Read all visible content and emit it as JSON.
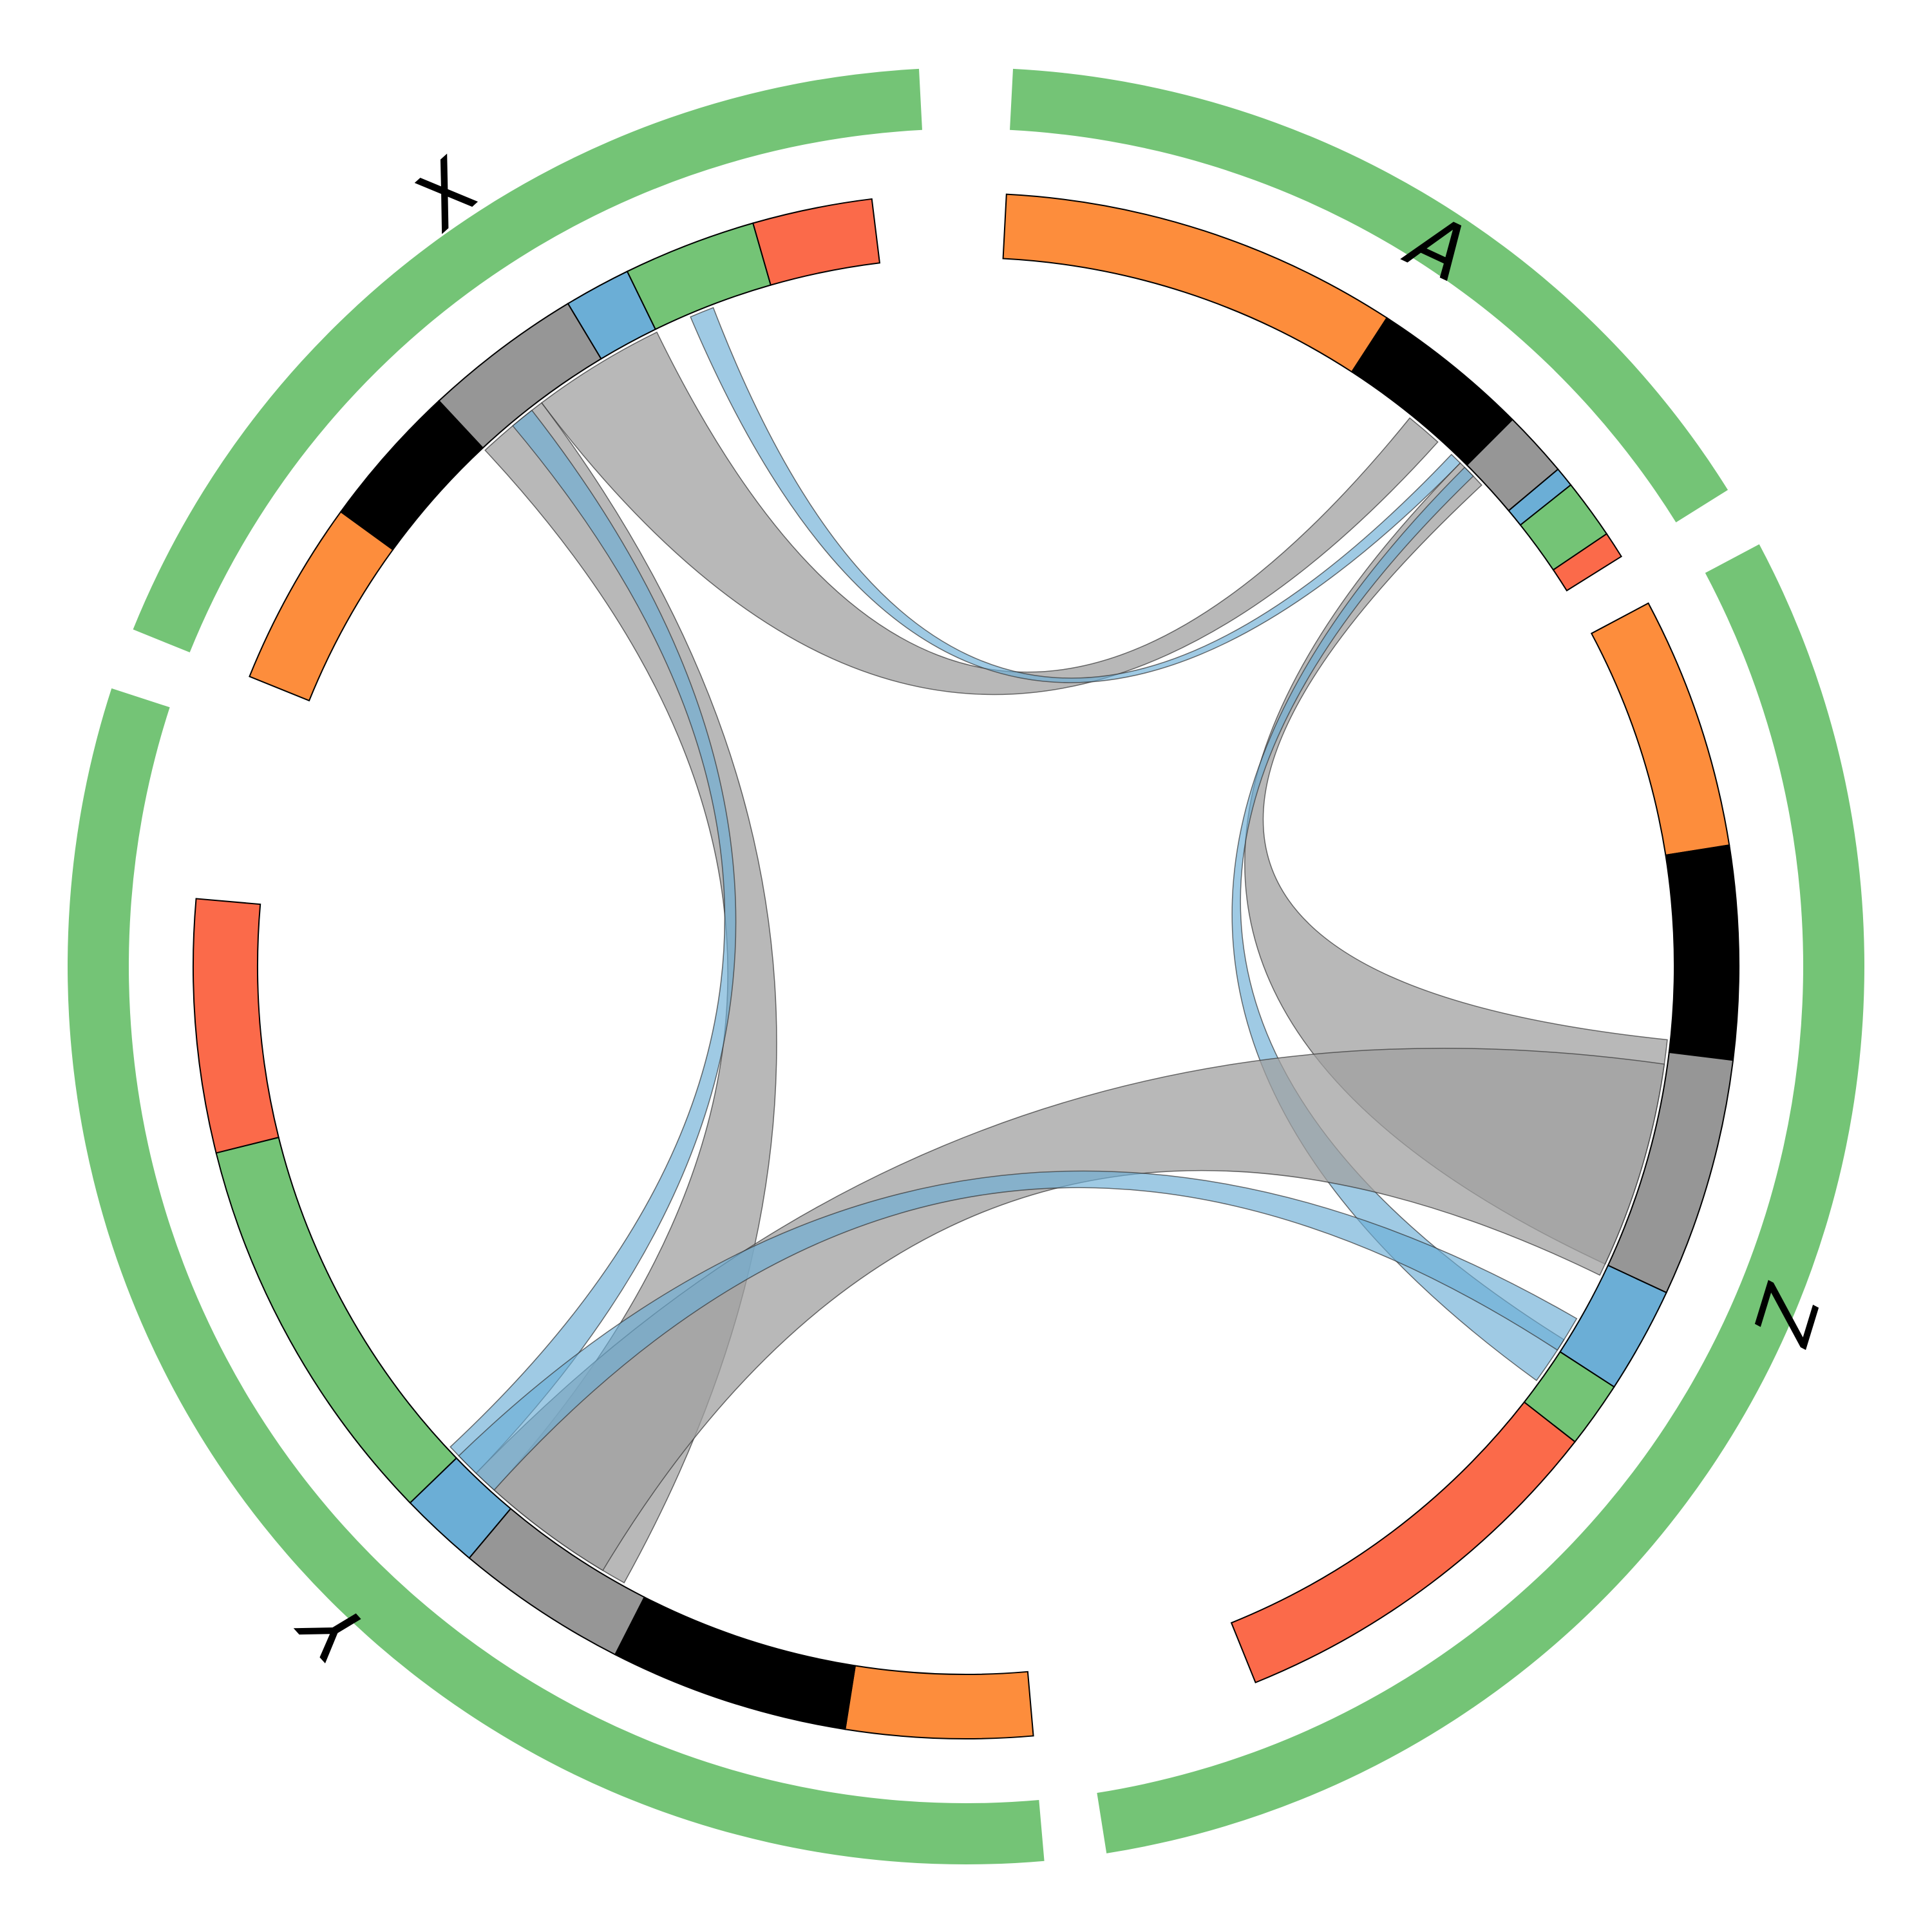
{
  "colors": {
    "outer_ring": "#74c476",
    "red": "#fb6a4a",
    "green": "#74c476",
    "blue": "#6baed6",
    "gray": "#969696",
    "black": "#000000",
    "orange": "#fd8d3c",
    "link_gray": "#a0a0a0",
    "link_blue": "#6baed6"
  },
  "sectors": [
    {
      "id": "A",
      "label": "A",
      "start": 3,
      "end": 58,
      "segments": [
        {
          "color": "orange",
          "from": 0,
          "to": 30
        },
        {
          "color": "black",
          "from": 30,
          "to": 42
        },
        {
          "color": "gray",
          "from": 42,
          "to": 47
        },
        {
          "color": "blue",
          "from": 47,
          "to": 48.5
        },
        {
          "color": "green",
          "from": 48.5,
          "to": 53
        },
        {
          "color": "red",
          "from": 53,
          "to": 55
        }
      ]
    },
    {
      "id": "Z",
      "label": "Z",
      "start": 62,
      "end": 171,
      "segments": [
        {
          "color": "orange",
          "from": 0,
          "to": 19
        },
        {
          "color": "black",
          "from": 19,
          "to": 35
        },
        {
          "color": "gray",
          "from": 35,
          "to": 53
        },
        {
          "color": "blue",
          "from": 53,
          "to": 61
        },
        {
          "color": "green",
          "from": 61,
          "to": 66
        },
        {
          "color": "red",
          "from": 66,
          "to": 96
        }
      ]
    },
    {
      "id": "Y",
      "label": "Y",
      "start": 175,
      "end": 288,
      "segments": [
        {
          "color": "orange",
          "from": 0,
          "to": 14
        },
        {
          "color": "black",
          "from": 14,
          "to": 32
        },
        {
          "color": "gray",
          "from": 32,
          "to": 45
        },
        {
          "color": "blue",
          "from": 45,
          "to": 51
        },
        {
          "color": "green",
          "from": 51,
          "to": 81
        },
        {
          "color": "red",
          "from": 81,
          "to": 100
        }
      ]
    },
    {
      "id": "X",
      "label": "X",
      "start": 292,
      "end": 357,
      "segments": [
        {
          "color": "orange",
          "from": 0,
          "to": 14
        },
        {
          "color": "black",
          "from": 14,
          "to": 25
        },
        {
          "color": "gray",
          "from": 25,
          "to": 37
        },
        {
          "color": "blue",
          "from": 37,
          "to": 42
        },
        {
          "color": "green",
          "from": 42,
          "to": 52
        },
        {
          "color": "red",
          "from": 52,
          "to": 61
        }
      ]
    }
  ],
  "links": [
    {
      "color": "link_gray",
      "a": [
        323,
        334
      ],
      "b": [
        39,
        42
      ]
    },
    {
      "color": "link_blue",
      "a": [
        337,
        339
      ],
      "b": [
        43.5,
        44.5
      ]
    },
    {
      "color": "link_gray",
      "a": [
        317,
        323
      ],
      "b": [
        209,
        222
      ]
    },
    {
      "color": "link_blue",
      "a": [
        320,
        322
      ],
      "b": [
        224,
        227
      ]
    },
    {
      "color": "link_gray",
      "a": [
        44.5,
        47
      ],
      "b": [
        96,
        115
      ]
    },
    {
      "color": "link_blue",
      "a": [
        45,
        46
      ],
      "b": [
        122,
        126
      ]
    },
    {
      "color": "link_gray",
      "a": [
        211,
        224
      ],
      "b": [
        98,
        116
      ]
    },
    {
      "color": "link_blue",
      "a": [
        222,
        226
      ],
      "b": [
        120,
        123
      ]
    }
  ]
}
